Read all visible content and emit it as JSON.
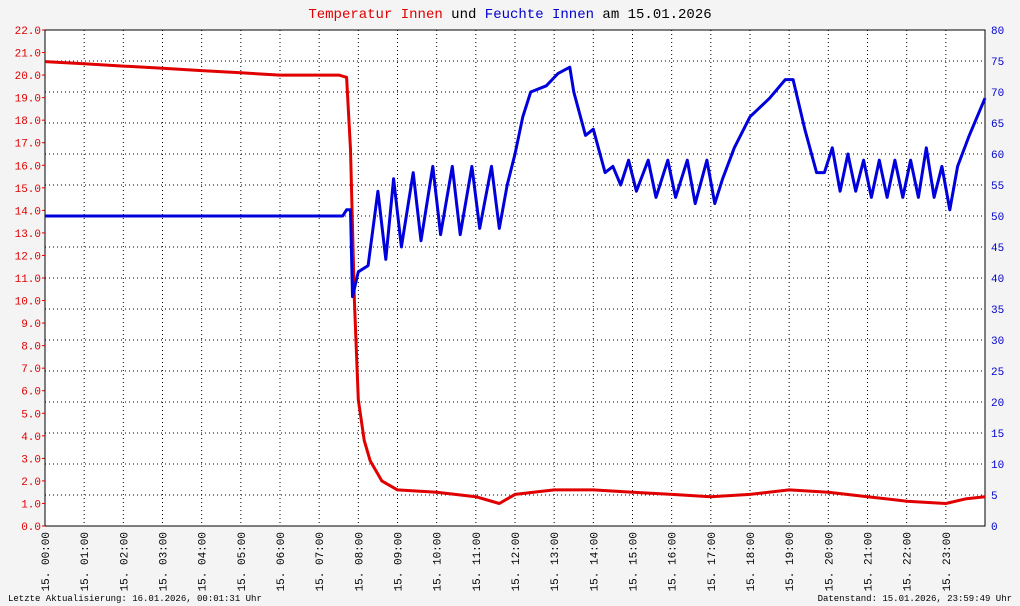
{
  "chart_data": {
    "type": "line",
    "title_parts": [
      {
        "text": "Temperatur Innen",
        "color": "#e00000"
      },
      {
        "text": "und",
        "color": "#000000"
      },
      {
        "text": "Feuchte Innen",
        "color": "#0000cc"
      },
      {
        "text": "am 15.01.2026",
        "color": "#000000"
      }
    ],
    "footer_left": "Letzte Aktualisierung: 16.01.2026, 00:01:31 Uhr",
    "footer_right": "Datenstand: 15.01.2026, 23:59:49 Uhr",
    "grid": true,
    "xlim": [
      0,
      24
    ],
    "xticks": [
      {
        "value": 0,
        "label": "15. 00:00"
      },
      {
        "value": 1,
        "label": "15. 01:00"
      },
      {
        "value": 2,
        "label": "15. 02:00"
      },
      {
        "value": 3,
        "label": "15. 03:00"
      },
      {
        "value": 4,
        "label": "15. 04:00"
      },
      {
        "value": 5,
        "label": "15. 05:00"
      },
      {
        "value": 6,
        "label": "15. 06:00"
      },
      {
        "value": 7,
        "label": "15. 07:00"
      },
      {
        "value": 8,
        "label": "15. 08:00"
      },
      {
        "value": 9,
        "label": "15. 09:00"
      },
      {
        "value": 10,
        "label": "15. 10:00"
      },
      {
        "value": 11,
        "label": "15. 11:00"
      },
      {
        "value": 12,
        "label": "15. 12:00"
      },
      {
        "value": 13,
        "label": "15. 13:00"
      },
      {
        "value": 14,
        "label": "15. 14:00"
      },
      {
        "value": 15,
        "label": "15. 15:00"
      },
      {
        "value": 16,
        "label": "15. 16:00"
      },
      {
        "value": 17,
        "label": "15. 17:00"
      },
      {
        "value": 18,
        "label": "15. 18:00"
      },
      {
        "value": 19,
        "label": "15. 19:00"
      },
      {
        "value": 20,
        "label": "15. 20:00"
      },
      {
        "value": 21,
        "label": "15. 21:00"
      },
      {
        "value": 22,
        "label": "15. 22:00"
      },
      {
        "value": 23,
        "label": "15. 23:00"
      }
    ],
    "ylim": [
      0,
      22
    ],
    "yticks": [
      {
        "value": 0,
        "label": "0.0"
      },
      {
        "value": 1,
        "label": "1.0"
      },
      {
        "value": 2,
        "label": "2.0"
      },
      {
        "value": 3,
        "label": "3.0"
      },
      {
        "value": 4,
        "label": "4.0"
      },
      {
        "value": 5,
        "label": "5.0"
      },
      {
        "value": 6,
        "label": "6.0"
      },
      {
        "value": 7,
        "label": "7.0"
      },
      {
        "value": 8,
        "label": "8.0"
      },
      {
        "value": 9,
        "label": "9.0"
      },
      {
        "value": 10,
        "label": "10.0"
      },
      {
        "value": 11,
        "label": "11.0"
      },
      {
        "value": 12,
        "label": "12.0"
      },
      {
        "value": 13,
        "label": "13.0"
      },
      {
        "value": 14,
        "label": "14.0"
      },
      {
        "value": 15,
        "label": "15.0"
      },
      {
        "value": 16,
        "label": "16.0"
      },
      {
        "value": 17,
        "label": "17.0"
      },
      {
        "value": 18,
        "label": "18.0"
      },
      {
        "value": 19,
        "label": "19.0"
      },
      {
        "value": 20,
        "label": "20.0"
      },
      {
        "value": 21,
        "label": "21.0"
      },
      {
        "value": 22,
        "label": "22.0"
      }
    ],
    "y2lim": [
      0,
      80
    ],
    "y2ticks": [
      0,
      5,
      10,
      15,
      20,
      25,
      30,
      35,
      40,
      45,
      50,
      55,
      60,
      65,
      70,
      75,
      80
    ],
    "series": [
      {
        "name": "Temperatur Innen",
        "color": "#e00000",
        "x": [
          0,
          1,
          2,
          3,
          4,
          5,
          6,
          7,
          7.5,
          7.7,
          7.8,
          7.9,
          8.0,
          8.15,
          8.3,
          8.6,
          9.0,
          10.0,
          11.0,
          11.6,
          12.0,
          13.0,
          14.0,
          15.0,
          16.0,
          17.0,
          18.0,
          19.0,
          20.0,
          21.0,
          22.0,
          23.0,
          23.5,
          24.0
        ],
        "values": [
          20.6,
          20.5,
          20.4,
          20.3,
          20.2,
          20.1,
          20.0,
          20.0,
          20.0,
          19.9,
          16.7,
          10.0,
          5.6,
          3.8,
          2.9,
          2.0,
          1.6,
          1.5,
          1.3,
          1.0,
          1.4,
          1.6,
          1.6,
          1.5,
          1.4,
          1.3,
          1.4,
          1.6,
          1.5,
          1.3,
          1.1,
          1.0,
          1.2,
          1.3
        ]
      },
      {
        "name": "Feuchte Innen",
        "color": "#0000dd",
        "axis": "y2",
        "x": [
          0,
          7.6,
          7.7,
          7.8,
          7.85,
          8.0,
          8.25,
          8.5,
          8.7,
          8.9,
          9.1,
          9.4,
          9.6,
          9.9,
          10.1,
          10.4,
          10.6,
          10.9,
          11.1,
          11.4,
          11.6,
          11.8,
          12.0,
          12.2,
          12.4,
          12.8,
          13.1,
          13.4,
          13.5,
          13.8,
          14.0,
          14.3,
          14.5,
          14.7,
          14.9,
          15.1,
          15.4,
          15.6,
          15.9,
          16.1,
          16.4,
          16.6,
          16.9,
          17.1,
          17.3,
          17.6,
          18.0,
          18.5,
          18.9,
          19.1,
          19.4,
          19.7,
          19.9,
          20.1,
          20.3,
          20.5,
          20.7,
          20.9,
          21.1,
          21.3,
          21.5,
          21.7,
          21.9,
          22.1,
          22.3,
          22.5,
          22.7,
          22.9,
          23.1,
          23.3,
          23.6,
          24.0
        ],
        "values": [
          50,
          50,
          51,
          51,
          37,
          41,
          42,
          54,
          43,
          56,
          45,
          57,
          46,
          58,
          47,
          58,
          47,
          58,
          48,
          58,
          48,
          55,
          60,
          66,
          70,
          71,
          73,
          74,
          70,
          63,
          64,
          57,
          58,
          55,
          59,
          54,
          59,
          53,
          59,
          53,
          59,
          52,
          59,
          52,
          56,
          61,
          66,
          69,
          72,
          72,
          64,
          57,
          57,
          61,
          54,
          60,
          54,
          59,
          53,
          59,
          53,
          59,
          53,
          59,
          53,
          61,
          53,
          58,
          51,
          58,
          63,
          69
        ]
      }
    ]
  }
}
